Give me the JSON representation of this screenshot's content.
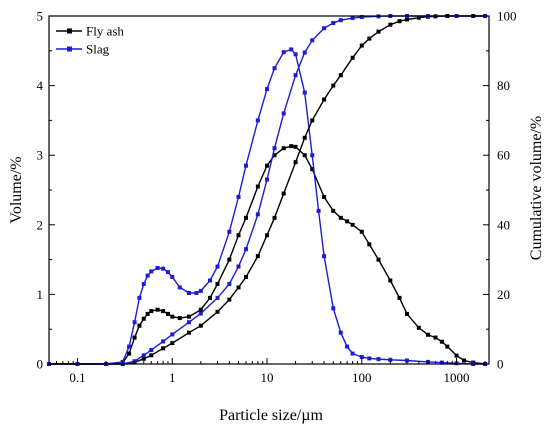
{
  "chart_data": {
    "type": "line",
    "xlabel": "Particle size/µm",
    "ylabel_left": "Volume/%",
    "ylabel_right": "Cumulative volume/%",
    "x_scale": "log",
    "xlim": [
      0.05,
      2200
    ],
    "ylim_left": [
      0,
      5
    ],
    "ylim_right": [
      0,
      100
    ],
    "x_ticks": [
      0.1,
      1,
      10,
      100,
      1000
    ],
    "x_tick_labels": [
      "0.1",
      "1",
      "10",
      "100",
      "1000"
    ],
    "y_left_ticks": [
      0,
      1,
      2,
      3,
      4,
      5
    ],
    "y_right_ticks": [
      0,
      20,
      40,
      60,
      80,
      100
    ],
    "grid": false,
    "legend_position": "top-left",
    "series": [
      {
        "name": "Fly ash",
        "color": "#000000",
        "marker": "square",
        "kind": "volume",
        "axis": "left",
        "x": [
          0.05,
          0.1,
          0.2,
          0.3,
          0.35,
          0.4,
          0.45,
          0.5,
          0.55,
          0.6,
          0.7,
          0.8,
          0.9,
          1.0,
          1.2,
          1.5,
          2,
          2.5,
          3,
          4,
          5,
          6,
          8,
          10,
          12,
          15,
          18,
          20,
          25,
          30,
          40,
          50,
          60,
          70,
          80,
          100,
          120,
          150,
          200,
          250,
          300,
          400,
          500,
          600,
          700,
          800,
          1000,
          1200,
          1500,
          2000
        ],
        "values": [
          0,
          0,
          0,
          0.02,
          0.15,
          0.38,
          0.55,
          0.65,
          0.72,
          0.76,
          0.78,
          0.76,
          0.72,
          0.68,
          0.66,
          0.68,
          0.78,
          0.95,
          1.15,
          1.5,
          1.85,
          2.1,
          2.55,
          2.85,
          3.0,
          3.1,
          3.13,
          3.12,
          3.0,
          2.8,
          2.4,
          2.2,
          2.1,
          2.05,
          2.0,
          1.9,
          1.72,
          1.5,
          1.2,
          0.95,
          0.72,
          0.52,
          0.42,
          0.38,
          0.32,
          0.25,
          0.12,
          0.05,
          0.02,
          0
        ]
      },
      {
        "name": "Slag",
        "color": "#1c1cd6",
        "marker": "square",
        "kind": "volume",
        "axis": "left",
        "x": [
          0.05,
          0.1,
          0.2,
          0.3,
          0.35,
          0.4,
          0.45,
          0.5,
          0.55,
          0.6,
          0.7,
          0.8,
          0.9,
          1.0,
          1.2,
          1.5,
          1.8,
          2,
          2.5,
          3,
          4,
          5,
          6,
          8,
          10,
          12,
          15,
          18,
          20,
          25,
          30,
          35,
          40,
          50,
          60,
          70,
          80,
          100,
          120,
          150,
          200,
          300,
          500,
          700,
          1000,
          1500,
          2000
        ],
        "values": [
          0,
          0,
          0,
          0.03,
          0.25,
          0.6,
          0.95,
          1.15,
          1.27,
          1.33,
          1.38,
          1.37,
          1.32,
          1.25,
          1.1,
          1.02,
          1.02,
          1.05,
          1.2,
          1.4,
          1.9,
          2.4,
          2.85,
          3.5,
          3.95,
          4.25,
          4.48,
          4.52,
          4.45,
          3.9,
          3.0,
          2.2,
          1.55,
          0.8,
          0.45,
          0.25,
          0.15,
          0.1,
          0.08,
          0.07,
          0.06,
          0.05,
          0.03,
          0.02,
          0.01,
          0,
          0
        ]
      },
      {
        "name": "Fly ash",
        "color": "#000000",
        "marker": "square",
        "kind": "cumulative",
        "axis": "right",
        "x": [
          0.05,
          0.1,
          0.2,
          0.3,
          0.4,
          0.5,
          0.6,
          0.8,
          1,
          1.5,
          2,
          3,
          4,
          5,
          6,
          8,
          10,
          12,
          15,
          20,
          25,
          30,
          40,
          50,
          60,
          80,
          100,
          120,
          150,
          200,
          250,
          300,
          400,
          500,
          600,
          800,
          1000,
          1500,
          2000
        ],
        "values": [
          0,
          0,
          0,
          0,
          0.5,
          1.5,
          2.5,
          4.5,
          6,
          9,
          11,
          15,
          18.5,
          22,
          25,
          31,
          37,
          42,
          49,
          58,
          65,
          70,
          76,
          80,
          83,
          88,
          91.5,
          93.5,
          95.5,
          97.5,
          98.5,
          99,
          99.5,
          99.8,
          99.9,
          100,
          100,
          100,
          100
        ]
      },
      {
        "name": "Slag",
        "color": "#1c1cd6",
        "marker": "square",
        "kind": "cumulative",
        "axis": "right",
        "x": [
          0.05,
          0.1,
          0.2,
          0.3,
          0.4,
          0.5,
          0.6,
          0.8,
          1,
          1.5,
          2,
          3,
          4,
          5,
          6,
          8,
          10,
          12,
          15,
          20,
          25,
          30,
          40,
          50,
          60,
          80,
          100,
          150,
          200,
          300,
          500,
          1000,
          2000
        ],
        "values": [
          0,
          0,
          0,
          0,
          0.8,
          2.5,
          4,
          6.5,
          8.5,
          12,
          14.5,
          19,
          23,
          28,
          33,
          43,
          53,
          62,
          72,
          83,
          89.5,
          93,
          96.5,
          98,
          98.8,
          99.4,
          99.7,
          99.9,
          100,
          100,
          100,
          100,
          100
        ]
      }
    ]
  }
}
